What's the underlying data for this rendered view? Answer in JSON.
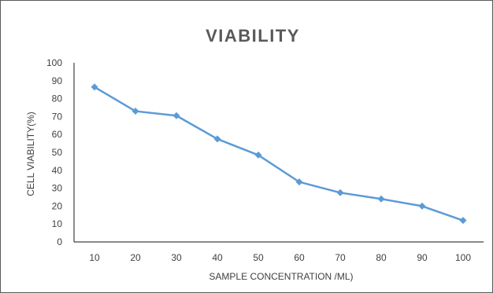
{
  "chart_data": {
    "type": "line",
    "title": "VIABILITY",
    "xlabel": "SAMPLE CONCENTRATION /ML)",
    "ylabel": "CELL VIABILITY(%)",
    "x": [
      10,
      20,
      30,
      40,
      50,
      60,
      70,
      80,
      90,
      100
    ],
    "categories": [
      "10",
      "20",
      "30",
      "40",
      "50",
      "60",
      "70",
      "80",
      "90",
      "100"
    ],
    "values": [
      86.5,
      73,
      70.5,
      57.5,
      48.5,
      33.5,
      27.5,
      24,
      20,
      12
    ],
    "ylim": [
      0,
      100
    ],
    "yticks": [
      "0",
      "10",
      "20",
      "30",
      "40",
      "50",
      "60",
      "70",
      "80",
      "90",
      "100"
    ],
    "grid": false,
    "legend": "none",
    "series_color": "#5b9bd5",
    "axis_color": "#404040"
  }
}
